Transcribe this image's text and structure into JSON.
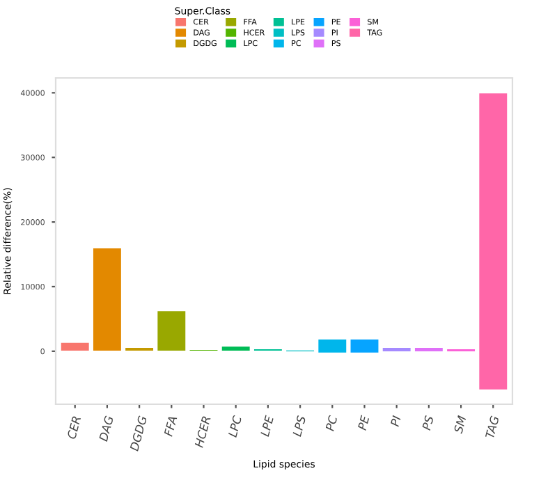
{
  "chart_data": {
    "type": "bar",
    "xlabel": "Lipid species",
    "ylabel": "Relative difference(%)",
    "legend_title": "Super.Class",
    "categories": [
      "CER",
      "DAG",
      "DGDG",
      "FFA",
      "HCER",
      "LPC",
      "LPE",
      "LPS",
      "PC",
      "PE",
      "PI",
      "PS",
      "SM",
      "TAG"
    ],
    "series": [
      {
        "name": "CER",
        "color": "#f8766d",
        "values": [
          1400,
          null,
          null,
          null,
          null,
          null,
          null,
          null,
          null,
          null,
          null,
          null,
          null,
          null
        ],
        "base": [
          0,
          null,
          null,
          null,
          null,
          null,
          null,
          null,
          null,
          null,
          null,
          null,
          null,
          null
        ]
      },
      {
        "name": "DAG",
        "color": "#e38900",
        "values": [
          null,
          16000,
          null,
          null,
          null,
          null,
          null,
          null,
          null,
          null,
          null,
          null,
          null,
          null
        ],
        "base": [
          null,
          0,
          null,
          null,
          null,
          null,
          null,
          null,
          null,
          null,
          null,
          null,
          null,
          null
        ]
      },
      {
        "name": "DGDG",
        "color": "#c49a00",
        "values": [
          null,
          null,
          600,
          null,
          null,
          null,
          null,
          null,
          null,
          null,
          null,
          null,
          null,
          null
        ],
        "base": [
          null,
          null,
          0,
          null,
          null,
          null,
          null,
          null,
          null,
          null,
          null,
          null,
          null,
          null
        ]
      },
      {
        "name": "FFA",
        "color": "#99a800",
        "values": [
          null,
          null,
          null,
          6300,
          null,
          null,
          null,
          null,
          null,
          null,
          null,
          null,
          null,
          null
        ],
        "base": [
          null,
          null,
          null,
          0,
          null,
          null,
          null,
          null,
          null,
          null,
          null,
          null,
          null,
          null
        ]
      },
      {
        "name": "HCER",
        "color": "#53b400",
        "values": [
          null,
          null,
          null,
          null,
          300,
          null,
          null,
          null,
          null,
          null,
          null,
          null,
          null,
          null
        ],
        "base": [
          null,
          null,
          null,
          null,
          0,
          null,
          null,
          null,
          null,
          null,
          null,
          null,
          null,
          null
        ]
      },
      {
        "name": "LPC",
        "color": "#00bc56",
        "values": [
          null,
          null,
          null,
          null,
          null,
          800,
          null,
          null,
          null,
          null,
          null,
          null,
          null,
          null
        ],
        "base": [
          null,
          null,
          null,
          null,
          null,
          0,
          null,
          null,
          null,
          null,
          null,
          null,
          null,
          null
        ]
      },
      {
        "name": "LPE",
        "color": "#00c094",
        "values": [
          null,
          null,
          null,
          null,
          null,
          null,
          400,
          null,
          null,
          null,
          null,
          null,
          null,
          null
        ],
        "base": [
          null,
          null,
          null,
          null,
          null,
          null,
          0,
          null,
          null,
          null,
          null,
          null,
          null,
          null
        ]
      },
      {
        "name": "LPS",
        "color": "#00bfc4",
        "values": [
          null,
          null,
          null,
          null,
          null,
          null,
          null,
          300,
          null,
          null,
          null,
          null,
          null,
          null
        ],
        "base": [
          null,
          null,
          null,
          null,
          null,
          null,
          null,
          -100,
          null,
          null,
          null,
          null,
          null,
          null
        ]
      },
      {
        "name": "PC",
        "color": "#00b6eb",
        "values": [
          null,
          null,
          null,
          null,
          null,
          null,
          null,
          null,
          2200,
          null,
          null,
          null,
          null,
          null
        ],
        "base": [
          null,
          null,
          null,
          null,
          null,
          null,
          null,
          null,
          -300,
          null,
          null,
          null,
          null,
          null
        ]
      },
      {
        "name": "PE",
        "color": "#06a4ff",
        "values": [
          null,
          null,
          null,
          null,
          null,
          null,
          null,
          null,
          null,
          2200,
          null,
          null,
          null,
          null
        ],
        "base": [
          null,
          null,
          null,
          null,
          null,
          null,
          null,
          null,
          null,
          -300,
          null,
          null,
          null,
          null
        ]
      },
      {
        "name": "PI",
        "color": "#a58aff",
        "values": [
          null,
          null,
          null,
          null,
          null,
          null,
          null,
          null,
          null,
          null,
          700,
          null,
          null,
          null
        ],
        "base": [
          null,
          null,
          null,
          null,
          null,
          null,
          null,
          null,
          null,
          null,
          -100,
          null,
          null,
          null
        ]
      },
      {
        "name": "PS",
        "color": "#df70f8",
        "values": [
          null,
          null,
          null,
          null,
          null,
          null,
          null,
          null,
          null,
          null,
          null,
          700,
          null,
          null
        ],
        "base": [
          null,
          null,
          null,
          null,
          null,
          null,
          null,
          null,
          null,
          null,
          null,
          -100,
          null,
          null
        ]
      },
      {
        "name": "SM",
        "color": "#fb61d7",
        "values": [
          null,
          null,
          null,
          null,
          null,
          null,
          null,
          null,
          null,
          null,
          null,
          null,
          500,
          null
        ],
        "base": [
          null,
          null,
          null,
          null,
          null,
          null,
          null,
          null,
          null,
          null,
          null,
          null,
          -100,
          null
        ]
      },
      {
        "name": "TAG",
        "color": "#ff66a8",
        "values": [
          null,
          null,
          null,
          null,
          null,
          null,
          null,
          null,
          null,
          null,
          null,
          null,
          null,
          46000
        ],
        "base": [
          null,
          null,
          null,
          null,
          null,
          null,
          null,
          null,
          null,
          null,
          null,
          null,
          null,
          -6000
        ]
      }
    ],
    "ylim": [
      -8200,
      42300
    ],
    "yticks": [
      0,
      10000,
      20000,
      30000,
      40000
    ],
    "grid": false,
    "legend": "top"
  }
}
